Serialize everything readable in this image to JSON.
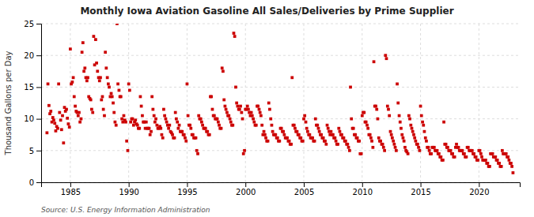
{
  "chart_data": {
    "type": "scatter",
    "title": "Monthly Iowa Aviation Gasoline All Sales/Deliveries by Prime Supplier",
    "ylabel": "Thousand Gallons per Day",
    "source": "Source: U.S. Energy Information Administration",
    "color": "#cc0000",
    "marker": "square",
    "grid": true,
    "xlim": [
      1982.5,
      2023.5
    ],
    "ylim": [
      0,
      25
    ],
    "xticks": [
      1985,
      1990,
      1995,
      2000,
      2005,
      2010,
      2015,
      2020
    ],
    "yticks": [
      0,
      5,
      10,
      15,
      20,
      25
    ],
    "x": [
      1983.0,
      1983.08,
      1983.17,
      1983.25,
      1983.33,
      1983.42,
      1983.5,
      1983.58,
      1983.67,
      1983.75,
      1983.83,
      1983.92,
      1984.0,
      1984.08,
      1984.17,
      1984.25,
      1984.33,
      1984.42,
      1984.5,
      1984.58,
      1984.67,
      1984.75,
      1984.83,
      1984.92,
      1985.0,
      1985.08,
      1985.17,
      1985.25,
      1985.33,
      1985.42,
      1985.5,
      1985.58,
      1985.67,
      1985.75,
      1985.83,
      1985.92,
      1986.0,
      1986.08,
      1986.17,
      1986.25,
      1986.33,
      1986.42,
      1986.5,
      1986.58,
      1986.67,
      1986.75,
      1986.83,
      1986.92,
      1987.0,
      1987.08,
      1987.17,
      1987.25,
      1987.33,
      1987.42,
      1987.5,
      1987.58,
      1987.67,
      1987.75,
      1987.83,
      1987.92,
      1988.0,
      1988.08,
      1988.17,
      1988.25,
      1988.33,
      1988.42,
      1988.5,
      1988.58,
      1988.67,
      1988.75,
      1988.83,
      1988.92,
      1989.0,
      1989.08,
      1989.17,
      1989.25,
      1989.33,
      1989.42,
      1989.5,
      1989.58,
      1989.67,
      1989.75,
      1989.83,
      1989.92,
      1990.0,
      1990.08,
      1990.17,
      1990.25,
      1990.33,
      1990.42,
      1990.5,
      1990.58,
      1990.67,
      1990.75,
      1990.83,
      1990.92,
      1991.0,
      1991.08,
      1991.17,
      1991.25,
      1991.33,
      1991.42,
      1991.5,
      1991.58,
      1991.67,
      1991.75,
      1991.83,
      1991.92,
      1992.0,
      1992.08,
      1992.17,
      1992.25,
      1992.33,
      1992.42,
      1992.5,
      1992.58,
      1992.67,
      1992.75,
      1992.83,
      1992.92,
      1993.0,
      1993.08,
      1993.17,
      1993.25,
      1993.33,
      1993.42,
      1993.5,
      1993.58,
      1993.67,
      1993.75,
      1993.83,
      1993.92,
      1994.0,
      1994.08,
      1994.17,
      1994.25,
      1994.33,
      1994.42,
      1994.5,
      1994.58,
      1994.67,
      1994.75,
      1994.83,
      1994.92,
      1995.0,
      1995.08,
      1995.17,
      1995.25,
      1995.33,
      1995.42,
      1995.5,
      1995.58,
      1995.67,
      1995.75,
      1995.83,
      1995.92,
      1996.0,
      1996.08,
      1996.17,
      1996.25,
      1996.33,
      1996.42,
      1996.5,
      1996.58,
      1996.67,
      1996.75,
      1996.83,
      1996.92,
      1997.0,
      1997.08,
      1997.17,
      1997.25,
      1997.33,
      1997.42,
      1997.5,
      1997.58,
      1997.67,
      1997.75,
      1997.83,
      1997.92,
      1998.0,
      1998.08,
      1998.17,
      1998.25,
      1998.33,
      1998.42,
      1998.5,
      1998.58,
      1998.67,
      1998.75,
      1998.83,
      1998.92,
      1999.0,
      1999.08,
      1999.17,
      1999.25,
      1999.33,
      1999.42,
      1999.5,
      1999.58,
      1999.67,
      1999.75,
      1999.83,
      1999.92,
      2000.0,
      2000.08,
      2000.17,
      2000.25,
      2000.33,
      2000.42,
      2000.5,
      2000.58,
      2000.67,
      2000.75,
      2000.83,
      2000.92,
      2001.0,
      2001.08,
      2001.17,
      2001.25,
      2001.33,
      2001.42,
      2001.5,
      2001.58,
      2001.67,
      2001.75,
      2001.83,
      2001.92,
      2002.0,
      2002.08,
      2002.17,
      2002.25,
      2002.33,
      2002.42,
      2002.5,
      2002.58,
      2002.67,
      2002.75,
      2002.83,
      2002.92,
      2003.0,
      2003.08,
      2003.17,
      2003.25,
      2003.33,
      2003.42,
      2003.5,
      2003.58,
      2003.67,
      2003.75,
      2003.83,
      2003.92,
      2004.0,
      2004.08,
      2004.17,
      2004.25,
      2004.33,
      2004.42,
      2004.5,
      2004.58,
      2004.67,
      2004.75,
      2004.83,
      2004.92,
      2005.0,
      2005.08,
      2005.17,
      2005.25,
      2005.33,
      2005.42,
      2005.5,
      2005.58,
      2005.67,
      2005.75,
      2005.83,
      2005.92,
      2006.0,
      2006.08,
      2006.17,
      2006.25,
      2006.33,
      2006.42,
      2006.5,
      2006.58,
      2006.67,
      2006.75,
      2006.83,
      2006.92,
      2007.0,
      2007.08,
      2007.17,
      2007.25,
      2007.33,
      2007.42,
      2007.5,
      2007.58,
      2007.67,
      2007.75,
      2007.83,
      2007.92,
      2008.0,
      2008.08,
      2008.17,
      2008.25,
      2008.33,
      2008.42,
      2008.5,
      2008.58,
      2008.67,
      2008.75,
      2008.83,
      2008.92,
      2009.0,
      2009.08,
      2009.17,
      2009.25,
      2009.33,
      2009.42,
      2009.5,
      2009.58,
      2009.67,
      2009.75,
      2009.83,
      2009.92,
      2010.0,
      2010.08,
      2010.17,
      2010.25,
      2010.33,
      2010.42,
      2010.5,
      2010.58,
      2010.67,
      2010.75,
      2010.83,
      2010.92,
      2011.0,
      2011.08,
      2011.17,
      2011.25,
      2011.33,
      2011.42,
      2011.5,
      2011.58,
      2011.67,
      2011.75,
      2011.83,
      2011.92,
      2012.0,
      2012.08,
      2012.17,
      2012.25,
      2012.33,
      2012.42,
      2012.5,
      2012.58,
      2012.67,
      2012.75,
      2012.83,
      2012.92,
      2013.0,
      2013.08,
      2013.17,
      2013.25,
      2013.33,
      2013.42,
      2013.5,
      2013.58,
      2013.67,
      2013.75,
      2013.83,
      2013.92,
      2014.0,
      2014.08,
      2014.17,
      2014.25,
      2014.33,
      2014.42,
      2014.5,
      2014.58,
      2014.67,
      2014.75,
      2014.83,
      2014.92,
      2015.0,
      2015.08,
      2015.17,
      2015.25,
      2015.33,
      2015.42,
      2015.5,
      2015.58,
      2015.67,
      2015.75,
      2015.83,
      2015.92,
      2016.0,
      2016.08,
      2016.17,
      2016.25,
      2016.33,
      2016.42,
      2016.5,
      2016.58,
      2016.67,
      2016.75,
      2016.83,
      2016.92,
      2017.0,
      2017.08,
      2017.17,
      2017.25,
      2017.33,
      2017.42,
      2017.5,
      2017.58,
      2017.67,
      2017.75,
      2017.83,
      2017.92,
      2018.0,
      2018.08,
      2018.17,
      2018.25,
      2018.33,
      2018.42,
      2018.5,
      2018.58,
      2018.67,
      2018.75,
      2018.83,
      2018.92,
      2019.0,
      2019.08,
      2019.17,
      2019.25,
      2019.33,
      2019.42,
      2019.5,
      2019.58,
      2019.67,
      2019.75,
      2019.83,
      2019.92,
      2020.0,
      2020.08,
      2020.17,
      2020.25,
      2020.33,
      2020.42,
      2020.5,
      2020.58,
      2020.67,
      2020.75,
      2020.83,
      2020.92,
      2021.0,
      2021.08,
      2021.17,
      2021.25,
      2021.33,
      2021.42,
      2021.5,
      2021.58,
      2021.67,
      2021.75,
      2021.83,
      2021.92,
      2022.0,
      2022.08,
      2022.17,
      2022.25,
      2022.33,
      2022.42,
      2022.5,
      2022.58,
      2022.67,
      2022.75,
      2022.83,
      2022.92
    ],
    "values": [
      7.8,
      15.5,
      12.1,
      10.8,
      11.2,
      9.5,
      10.2,
      9.8,
      9.3,
      8.1,
      8.8,
      8.5,
      15.5,
      11.0,
      9.8,
      8.3,
      10.5,
      6.2,
      11.8,
      11.2,
      11.5,
      10.1,
      9.2,
      8.7,
      21.0,
      15.5,
      15.8,
      16.5,
      13.5,
      12.0,
      11.2,
      11.0,
      10.5,
      11.0,
      9.5,
      10.0,
      20.5,
      22.0,
      17.5,
      18.0,
      16.5,
      16.0,
      16.5,
      13.5,
      13.2,
      13.0,
      11.5,
      11.0,
      23.0,
      18.5,
      22.5,
      18.8,
      17.5,
      16.5,
      16.0,
      16.5,
      13.0,
      13.5,
      11.5,
      10.5,
      20.5,
      18.0,
      16.5,
      15.5,
      15.0,
      13.5,
      14.0,
      13.5,
      12.5,
      11.0,
      9.5,
      9.0,
      25.0,
      15.5,
      14.5,
      13.5,
      13.5,
      10.0,
      9.5,
      10.5,
      9.8,
      9.5,
      6.5,
      5.0,
      15.5,
      14.5,
      9.5,
      10.0,
      10.0,
      9.0,
      9.5,
      9.8,
      9.2,
      9.0,
      8.5,
      8.5,
      13.5,
      12.0,
      10.5,
      9.5,
      9.5,
      8.5,
      9.5,
      8.5,
      8.5,
      8.5,
      7.5,
      8.0,
      13.5,
      11.5,
      10.5,
      9.5,
      10.0,
      9.0,
      8.5,
      8.5,
      8.8,
      8.5,
      7.5,
      7.0,
      11.5,
      10.5,
      10.0,
      9.5,
      9.0,
      8.5,
      9.0,
      8.0,
      7.8,
      7.5,
      7.0,
      7.0,
      11.0,
      10.0,
      9.5,
      8.5,
      9.0,
      8.0,
      8.0,
      8.0,
      7.5,
      7.5,
      7.0,
      6.5,
      15.5,
      10.5,
      9.0,
      9.0,
      8.5,
      7.5,
      7.5,
      7.0,
      7.0,
      7.0,
      5.0,
      4.5,
      10.5,
      10.0,
      10.0,
      9.5,
      9.0,
      8.5,
      8.5,
      8.5,
      8.0,
      8.0,
      7.5,
      7.5,
      13.5,
      13.5,
      11.5,
      10.5,
      10.5,
      10.0,
      10.0,
      10.0,
      9.5,
      9.0,
      8.5,
      8.5,
      18.0,
      17.5,
      13.0,
      12.0,
      11.5,
      11.0,
      10.5,
      10.5,
      10.0,
      9.5,
      9.0,
      9.0,
      23.5,
      23.0,
      15.0,
      12.5,
      12.0,
      11.5,
      11.5,
      12.0,
      11.0,
      10.0,
      4.5,
      5.0,
      11.5,
      11.5,
      12.0,
      11.5,
      11.0,
      10.5,
      11.0,
      10.5,
      10.0,
      9.5,
      9.0,
      9.0,
      12.0,
      12.0,
      11.5,
      11.0,
      10.5,
      9.0,
      7.5,
      8.0,
      7.5,
      7.0,
      6.5,
      6.5,
      12.5,
      11.5,
      10.0,
      9.0,
      8.0,
      7.5,
      7.5,
      7.5,
      7.0,
      7.0,
      6.5,
      6.5,
      8.5,
      8.5,
      8.0,
      8.0,
      7.5,
      7.0,
      7.0,
      7.0,
      6.5,
      6.5,
      6.0,
      6.0,
      16.5,
      9.0,
      9.0,
      8.5,
      8.0,
      8.0,
      7.5,
      7.5,
      7.0,
      7.0,
      6.5,
      6.5,
      10.0,
      10.5,
      9.5,
      8.5,
      8.0,
      7.5,
      7.5,
      7.0,
      7.0,
      7.0,
      6.5,
      6.5,
      10.0,
      9.0,
      9.0,
      8.5,
      8.0,
      7.5,
      7.5,
      7.0,
      7.0,
      6.5,
      6.5,
      6.0,
      9.0,
      8.5,
      8.0,
      7.5,
      8.0,
      7.5,
      7.5,
      7.0,
      7.0,
      6.5,
      6.0,
      6.0,
      8.5,
      8.0,
      7.5,
      7.5,
      7.0,
      7.0,
      6.5,
      6.5,
      6.0,
      6.0,
      5.5,
      5.0,
      15.0,
      10.0,
      8.5,
      8.5,
      7.5,
      7.5,
      7.0,
      7.0,
      6.5,
      6.5,
      4.5,
      4.5,
      10.5,
      11.0,
      11.0,
      9.5,
      9.5,
      9.0,
      8.5,
      7.5,
      7.5,
      7.0,
      6.5,
      5.5,
      19.0,
      12.0,
      12.0,
      11.5,
      10.0,
      7.0,
      6.5,
      6.5,
      6.0,
      6.0,
      5.5,
      5.0,
      20.0,
      19.5,
      12.0,
      11.5,
      10.5,
      8.0,
      7.5,
      7.0,
      6.5,
      6.0,
      5.5,
      5.0,
      15.5,
      12.5,
      10.5,
      9.5,
      8.5,
      7.5,
      7.0,
      6.5,
      5.5,
      5.0,
      4.8,
      4.5,
      10.5,
      10.0,
      9.0,
      8.5,
      8.0,
      7.5,
      7.0,
      6.5,
      6.0,
      6.0,
      5.5,
      5.0,
      12.0,
      10.5,
      9.5,
      9.0,
      8.0,
      7.0,
      6.5,
      5.5,
      5.5,
      5.0,
      4.5,
      4.5,
      5.5,
      5.5,
      5.5,
      5.0,
      5.0,
      5.0,
      4.5,
      4.5,
      4.0,
      4.0,
      3.5,
      3.5,
      9.5,
      6.0,
      6.0,
      5.5,
      5.5,
      5.0,
      5.0,
      5.0,
      4.5,
      4.5,
      4.0,
      4.0,
      5.5,
      6.0,
      5.5,
      5.5,
      5.0,
      5.0,
      5.0,
      5.0,
      4.5,
      4.5,
      4.0,
      4.0,
      5.5,
      5.5,
      5.0,
      5.0,
      5.0,
      5.0,
      4.5,
      4.5,
      4.0,
      4.0,
      3.5,
      3.5,
      5.0,
      5.0,
      4.5,
      4.0,
      3.5,
      3.5,
      3.5,
      3.5,
      3.0,
      3.0,
      2.5,
      2.5,
      4.5,
      4.5,
      4.5,
      4.0,
      4.0,
      4.0,
      3.5,
      3.5,
      3.0,
      3.0,
      2.5,
      2.5,
      5.0,
      4.5,
      4.5,
      4.5,
      4.5,
      4.0,
      4.0,
      3.5,
      3.0,
      3.0,
      2.5,
      1.5
    ]
  }
}
